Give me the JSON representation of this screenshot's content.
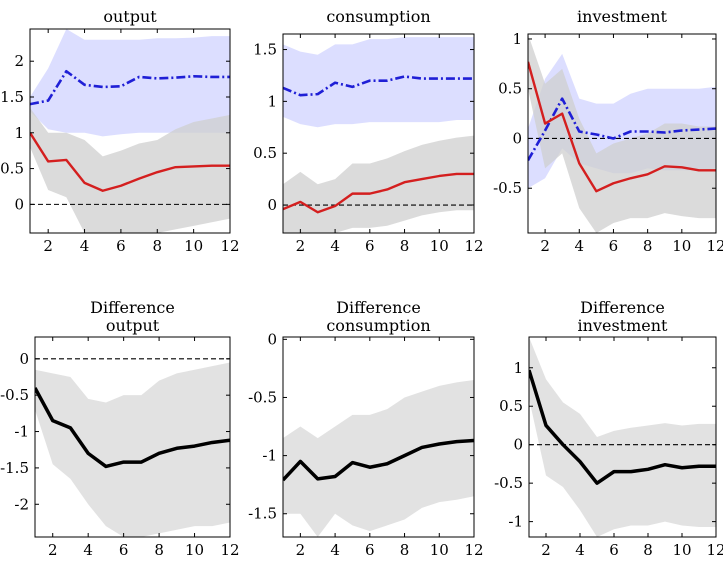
{
  "colors": {
    "blue_line": "#1f1fd6",
    "blue_band": "#d6d8ff",
    "red_line": "#d41f1f",
    "grey_band": "#cfcfcf",
    "grey_band_overlap": "#bebece",
    "black_line": "#000000",
    "zero_line": "#000000"
  },
  "chart_data": [
    {
      "type": "line",
      "title": "output",
      "xlim": [
        1,
        12
      ],
      "ylim": [
        -0.4,
        2.45
      ],
      "xticks": [
        2,
        4,
        6,
        8,
        10,
        12
      ],
      "xtick_labels": [
        "2",
        "4",
        "6",
        "8",
        "10",
        "12"
      ],
      "yticks": [
        0,
        0.5,
        1,
        1.5,
        2
      ],
      "ytick_labels": [
        "0",
        "0.5",
        "1",
        "1.5",
        "2"
      ],
      "zero_line": true,
      "x": [
        1,
        2,
        3,
        4,
        5,
        6,
        7,
        8,
        9,
        10,
        11,
        12
      ],
      "series": [
        {
          "style": "dashdot-blue",
          "values": [
            1.4,
            1.45,
            1.86,
            1.67,
            1.64,
            1.65,
            1.78,
            1.76,
            1.77,
            1.79,
            1.78,
            1.78
          ],
          "band_low": [
            1.3,
            1.05,
            1.0,
            1.0,
            0.95,
            0.98,
            1.0,
            1.0,
            1.0,
            1.0,
            1.0,
            1.0
          ],
          "band_high": [
            1.5,
            1.9,
            2.45,
            2.3,
            2.3,
            2.3,
            2.3,
            2.32,
            2.32,
            2.33,
            2.35,
            2.35
          ]
        },
        {
          "style": "solid-red",
          "values": [
            1.0,
            0.6,
            0.62,
            0.3,
            0.19,
            0.26,
            0.36,
            0.45,
            0.52,
            0.53,
            0.54,
            0.54
          ],
          "band_low": [
            0.8,
            0.2,
            0.1,
            -0.4,
            -0.4,
            -0.4,
            -0.4,
            -0.4,
            -0.35,
            -0.3,
            -0.25,
            -0.2
          ],
          "band_high": [
            1.35,
            1.0,
            1.0,
            0.9,
            0.67,
            0.75,
            0.85,
            0.9,
            1.05,
            1.15,
            1.2,
            1.25
          ]
        }
      ]
    },
    {
      "type": "line",
      "title": "consumption",
      "xlim": [
        1,
        12
      ],
      "ylim": [
        -0.27,
        1.65
      ],
      "xticks": [
        2,
        4,
        6,
        8,
        10,
        12
      ],
      "xtick_labels": [
        "2",
        "4",
        "6",
        "8",
        "10",
        "12"
      ],
      "yticks": [
        0,
        0.5,
        1,
        1.5
      ],
      "ytick_labels": [
        "0",
        "0.5",
        "1",
        "1.5"
      ],
      "zero_line": true,
      "x": [
        1,
        2,
        3,
        4,
        5,
        6,
        7,
        8,
        9,
        10,
        11,
        12
      ],
      "series": [
        {
          "style": "dashdot-blue",
          "values": [
            1.13,
            1.06,
            1.07,
            1.18,
            1.14,
            1.2,
            1.2,
            1.24,
            1.22,
            1.22,
            1.22,
            1.22
          ],
          "band_low": [
            0.85,
            0.78,
            0.75,
            0.78,
            0.78,
            0.8,
            0.8,
            0.8,
            0.8,
            0.8,
            0.82,
            0.82
          ],
          "band_high": [
            1.55,
            1.48,
            1.45,
            1.55,
            1.55,
            1.6,
            1.6,
            1.62,
            1.62,
            1.62,
            1.62,
            1.62
          ]
        },
        {
          "style": "solid-red",
          "values": [
            -0.04,
            0.03,
            -0.07,
            -0.01,
            0.11,
            0.11,
            0.15,
            0.22,
            0.25,
            0.28,
            0.3,
            0.3
          ],
          "band_low": [
            -0.27,
            -0.27,
            -0.27,
            -0.27,
            -0.22,
            -0.22,
            -0.2,
            -0.15,
            -0.1,
            -0.07,
            -0.05,
            -0.05
          ],
          "band_high": [
            0.2,
            0.32,
            0.2,
            0.25,
            0.4,
            0.4,
            0.45,
            0.52,
            0.58,
            0.62,
            0.65,
            0.67
          ]
        }
      ]
    },
    {
      "type": "line",
      "title": "investment",
      "xlim": [
        1,
        12
      ],
      "ylim": [
        -0.95,
        1.05
      ],
      "xticks": [
        2,
        4,
        6,
        8,
        10,
        12
      ],
      "xtick_labels": [
        "2",
        "4",
        "6",
        "8",
        "10",
        "12"
      ],
      "yticks": [
        -0.5,
        0,
        0.5,
        1
      ],
      "ytick_labels": [
        "-0.5",
        "0",
        "0.5",
        "1"
      ],
      "zero_line": true,
      "x": [
        1,
        2,
        3,
        4,
        5,
        6,
        7,
        8,
        9,
        10,
        11,
        12
      ],
      "series": [
        {
          "style": "dashdot-blue",
          "values": [
            -0.22,
            0.08,
            0.4,
            0.07,
            0.04,
            0.0,
            0.07,
            0.07,
            0.06,
            0.08,
            0.09,
            0.1
          ],
          "band_low": [
            -0.5,
            -0.4,
            -0.1,
            -0.25,
            -0.3,
            -0.35,
            -0.35,
            -0.3,
            -0.32,
            -0.32,
            -0.32,
            -0.3
          ],
          "band_high": [
            0.1,
            0.6,
            0.85,
            0.4,
            0.35,
            0.35,
            0.45,
            0.5,
            0.5,
            0.5,
            0.5,
            0.52
          ]
        },
        {
          "style": "solid-red",
          "values": [
            0.77,
            0.15,
            0.25,
            -0.25,
            -0.53,
            -0.45,
            -0.4,
            -0.36,
            -0.28,
            -0.29,
            -0.32,
            -0.32
          ],
          "band_low": [
            0.5,
            -0.3,
            -0.15,
            -0.7,
            -0.95,
            -0.85,
            -0.8,
            -0.8,
            -0.75,
            -0.78,
            -0.8,
            -0.8
          ],
          "band_high": [
            1.05,
            0.55,
            0.7,
            0.2,
            -0.15,
            -0.05,
            0.0,
            0.05,
            0.15,
            0.15,
            0.12,
            0.12
          ]
        }
      ]
    },
    {
      "type": "line",
      "title": "Difference output",
      "title_lines": [
        "Difference",
        "output"
      ],
      "xlim": [
        1,
        12
      ],
      "ylim": [
        -2.45,
        0.3
      ],
      "xticks": [
        2,
        4,
        6,
        8,
        10,
        12
      ],
      "xtick_labels": [
        "2",
        "4",
        "6",
        "8",
        "10",
        "12"
      ],
      "yticks": [
        -2,
        -1.5,
        -1,
        -0.5,
        0
      ],
      "ytick_labels": [
        "-2",
        "-1.5",
        "-1",
        "-0.5",
        "0"
      ],
      "zero_line": true,
      "x": [
        1,
        2,
        3,
        4,
        5,
        6,
        7,
        8,
        9,
        10,
        11,
        12
      ],
      "series": [
        {
          "style": "solid-black",
          "values": [
            -0.4,
            -0.85,
            -0.95,
            -1.3,
            -1.48,
            -1.42,
            -1.42,
            -1.3,
            -1.23,
            -1.2,
            -1.15,
            -1.12
          ],
          "band_low": [
            -0.7,
            -1.45,
            -1.65,
            -2.0,
            -2.3,
            -2.45,
            -2.45,
            -2.4,
            -2.35,
            -2.3,
            -2.3,
            -2.25
          ],
          "band_high": [
            -0.15,
            -0.2,
            -0.25,
            -0.55,
            -0.6,
            -0.5,
            -0.5,
            -0.3,
            -0.2,
            -0.15,
            -0.1,
            -0.05
          ]
        }
      ]
    },
    {
      "type": "line",
      "title": "Difference consumption",
      "title_lines": [
        "Difference",
        "consumption"
      ],
      "xlim": [
        1,
        12
      ],
      "ylim": [
        -1.7,
        0.02
      ],
      "xticks": [
        2,
        4,
        6,
        8,
        10,
        12
      ],
      "xtick_labels": [
        "2",
        "4",
        "6",
        "8",
        "10",
        "12"
      ],
      "yticks": [
        -1.5,
        -1,
        -0.5,
        0
      ],
      "ytick_labels": [
        "-1.5",
        "-1",
        "-0.5",
        "0"
      ],
      "zero_line": false,
      "x": [
        1,
        2,
        3,
        4,
        5,
        6,
        7,
        8,
        9,
        10,
        11,
        12
      ],
      "series": [
        {
          "style": "solid-black",
          "values": [
            -1.21,
            -1.05,
            -1.2,
            -1.18,
            -1.06,
            -1.1,
            -1.07,
            -1.0,
            -0.93,
            -0.9,
            -0.88,
            -0.87
          ],
          "band_low": [
            -1.5,
            -1.5,
            -1.7,
            -1.5,
            -1.6,
            -1.65,
            -1.6,
            -1.55,
            -1.45,
            -1.4,
            -1.38,
            -1.35
          ],
          "band_high": [
            -0.85,
            -0.75,
            -0.85,
            -0.75,
            -0.65,
            -0.65,
            -0.6,
            -0.5,
            -0.45,
            -0.4,
            -0.37,
            -0.35
          ]
        }
      ]
    },
    {
      "type": "line",
      "title": "Difference investment",
      "title_lines": [
        "Difference",
        "investment"
      ],
      "xlim": [
        1,
        12
      ],
      "ylim": [
        -1.2,
        1.4
      ],
      "xticks": [
        2,
        4,
        6,
        8,
        10,
        12
      ],
      "xtick_labels": [
        "2",
        "4",
        "6",
        "8",
        "10",
        "12"
      ],
      "yticks": [
        -1,
        -0.5,
        0,
        0.5,
        1
      ],
      "ytick_labels": [
        "-1",
        "-0.5",
        "0",
        "0.5",
        "1"
      ],
      "zero_line": true,
      "x": [
        1,
        2,
        3,
        4,
        5,
        6,
        7,
        8,
        9,
        10,
        11,
        12
      ],
      "series": [
        {
          "style": "solid-black",
          "values": [
            0.97,
            0.25,
            0.0,
            -0.22,
            -0.5,
            -0.35,
            -0.35,
            -0.32,
            -0.26,
            -0.3,
            -0.28,
            -0.28
          ],
          "band_low": [
            0.6,
            -0.4,
            -0.55,
            -0.85,
            -1.2,
            -1.1,
            -1.05,
            -1.05,
            -1.0,
            -1.05,
            -1.07,
            -1.07
          ],
          "band_high": [
            1.4,
            0.85,
            0.55,
            0.4,
            0.1,
            0.18,
            0.22,
            0.25,
            0.28,
            0.25,
            0.27,
            0.27
          ]
        }
      ]
    }
  ]
}
